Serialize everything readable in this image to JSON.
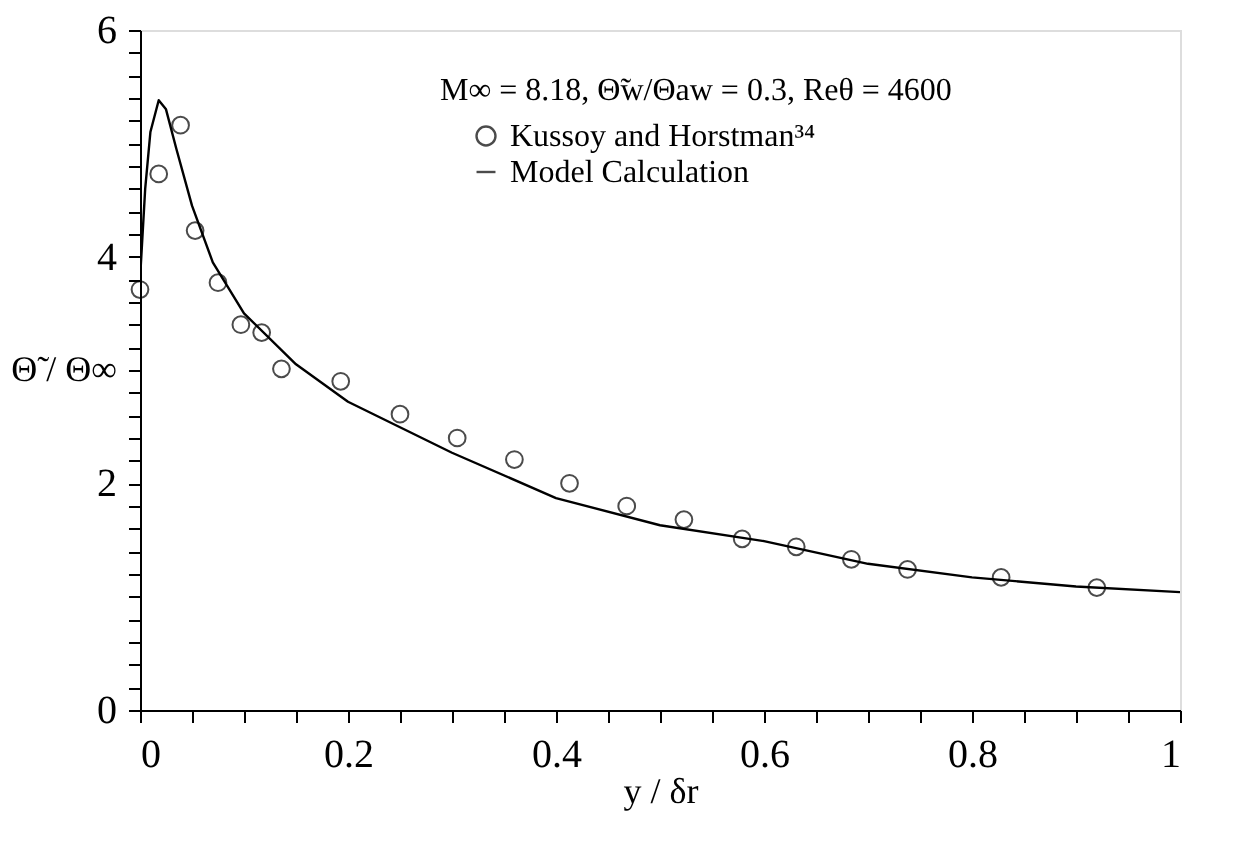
{
  "chart_data": {
    "type": "scatter",
    "annotations": [
      "M∞ = 8.18, Θ̃w/Θaw = 0.3, Reθ = 4600"
    ],
    "xlabel": "y / δr",
    "ylabel": "Θ̃ / Θ∞",
    "xlim": [
      0,
      1
    ],
    "ylim": [
      0,
      6
    ],
    "xticks": [
      0,
      {
        "value": 0.05,
        "label": null
      },
      {
        "value": 0.1,
        "label": null
      },
      {
        "value": 0.15,
        "label": null
      },
      0.2,
      {
        "value": 0.25,
        "label": null
      },
      {
        "value": 0.3,
        "label": null
      },
      {
        "value": 0.35,
        "label": null
      },
      0.4,
      {
        "value": 0.45,
        "label": null
      },
      {
        "value": 0.5,
        "label": null
      },
      {
        "value": 0.55,
        "label": null
      },
      0.6,
      {
        "value": 0.65,
        "label": null
      },
      {
        "value": 0.7,
        "label": null
      },
      {
        "value": 0.75,
        "label": null
      },
      0.8,
      {
        "value": 0.85,
        "label": null
      },
      {
        "value": 0.9,
        "label": null
      },
      {
        "value": 0.95,
        "label": null
      },
      1
    ],
    "yticks": [
      0,
      {
        "value": 0.2,
        "label": null
      },
      {
        "value": 0.4,
        "label": null
      },
      {
        "value": 0.6,
        "label": null
      },
      {
        "value": 0.8,
        "label": null
      },
      {
        "value": 1,
        "label": null
      },
      {
        "value": 1.2,
        "label": null
      },
      {
        "value": 1.4,
        "label": null
      },
      {
        "value": 1.6,
        "label": null
      },
      {
        "value": 1.8,
        "label": null
      },
      2,
      {
        "value": 2.2,
        "label": null
      },
      {
        "value": 2.4,
        "label": null
      },
      {
        "value": 2.6,
        "label": null
      },
      {
        "value": 2.8,
        "label": null
      },
      {
        "value": 3,
        "label": null
      },
      {
        "value": 3.2,
        "label": null
      },
      {
        "value": 3.4,
        "label": null
      },
      {
        "value": 3.6,
        "label": null
      },
      {
        "value": 3.8,
        "label": null
      },
      4,
      {
        "value": 4.2,
        "label": null
      },
      {
        "value": 4.4,
        "label": null
      },
      {
        "value": 4.6,
        "label": null
      },
      {
        "value": 4.8,
        "label": null
      },
      {
        "value": 5,
        "label": null
      },
      {
        "value": 5.2,
        "label": null
      },
      {
        "value": 5.4,
        "label": null
      },
      {
        "value": 5.6,
        "label": null
      },
      {
        "value": 5.8,
        "label": null
      },
      6
    ],
    "grid": false,
    "legend": "top",
    "series": [
      {
        "name": "Kussoy and Horstman³⁴",
        "marker": "circle",
        "color": "#000000",
        "x": [
          0,
          0.018,
          0.039,
          0.053,
          0.075,
          0.097,
          0.117,
          0.136,
          0.193,
          0.25,
          0.305,
          0.36,
          0.413,
          0.468,
          0.523,
          0.579,
          0.631,
          0.684,
          0.738,
          0.828,
          0.92
        ],
        "values": [
          3.71,
          4.73,
          5.16,
          4.23,
          3.77,
          3.4,
          3.33,
          3.01,
          2.9,
          2.61,
          2.4,
          2.21,
          2.0,
          1.8,
          1.68,
          1.51,
          1.44,
          1.33,
          1.24,
          1.17,
          1.08
        ]
      },
      {
        "name": "Model Calculation",
        "type": "line",
        "marker": "none",
        "line_style": "solid",
        "color": "#000000",
        "x": [
          0,
          0.005,
          0.01,
          0.018,
          0.025,
          0.035,
          0.05,
          0.07,
          0.1,
          0.15,
          0.2,
          0.3,
          0.4,
          0.5,
          0.6,
          0.7,
          0.8,
          0.9,
          1.0
        ],
        "values": [
          3.8,
          4.6,
          5.1,
          5.38,
          5.3,
          4.95,
          4.45,
          3.95,
          3.5,
          3.05,
          2.72,
          2.27,
          1.87,
          1.63,
          1.49,
          1.29,
          1.17,
          1.09,
          1.04
        ]
      }
    ]
  }
}
